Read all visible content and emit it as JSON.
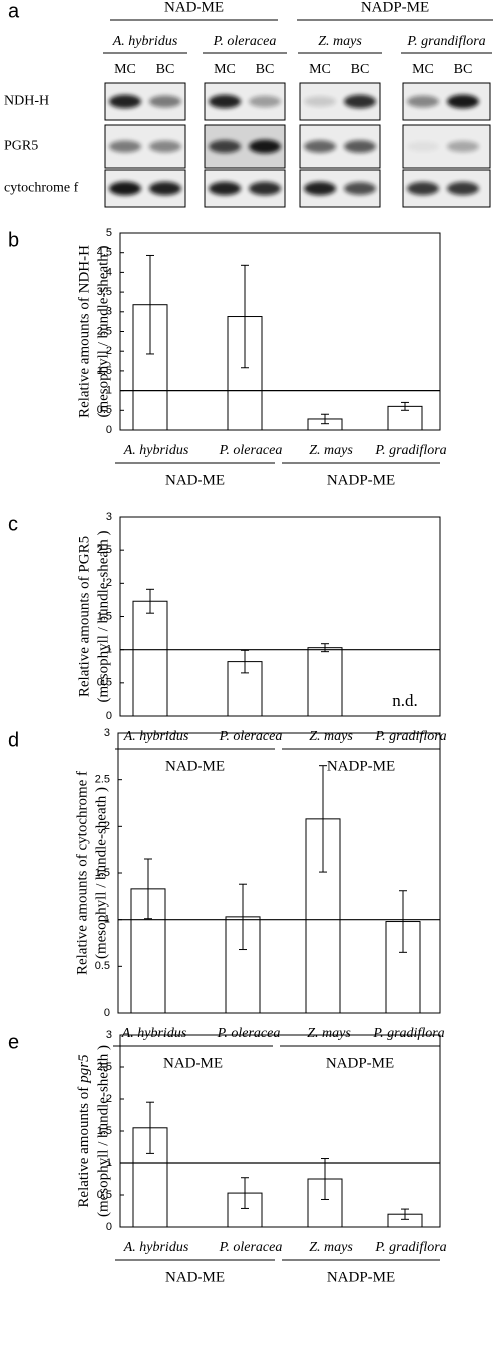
{
  "blot": {
    "label": "a",
    "groups": [
      {
        "name": "NAD-ME",
        "species": [
          "A. hybridus",
          "P. oleracea"
        ]
      },
      {
        "name": "NADP-ME",
        "species": [
          "Z. mays",
          "P. grandiflora"
        ]
      }
    ],
    "lanes": [
      "MC",
      "BC"
    ],
    "rows": [
      "NDH-H",
      "PGR5",
      "cytochrome f"
    ]
  },
  "chart_data": [
    {
      "type": "bar",
      "label": "b",
      "ylabel": "Relative amounts of NDH-H",
      "ylabel2": "(mesophyll / bundle-sheath )",
      "categories": [
        "A. hybridus",
        "P. oleracea",
        "Z. mays",
        "P. gradiflora"
      ],
      "groups": [
        "NAD-ME",
        "NADP-ME"
      ],
      "series": [
        {
          "color": "#ffffff",
          "values": [
            3.18,
            2.88,
            0.28,
            0.6
          ],
          "errors": [
            1.25,
            1.3,
            0.12,
            0.1
          ]
        }
      ],
      "ylim": [
        0,
        5
      ],
      "yticks": [
        0,
        0.5,
        1,
        1.5,
        2,
        2.5,
        3,
        3.5,
        4,
        4.5,
        5
      ],
      "hline": 1
    },
    {
      "type": "bar",
      "label": "c",
      "ylabel": "Relative amounts of PGR5",
      "ylabel2": "(mesophyll / bundle-sheath )",
      "categories": [
        "A. hybridus",
        "P. oleracea",
        "Z. mays",
        "P. gradiflora"
      ],
      "groups": [
        "NAD-ME",
        "NADP-ME"
      ],
      "series": [
        {
          "color": "#ffffff",
          "values": [
            1.73,
            0.82,
            1.03,
            null
          ],
          "errors": [
            0.18,
            0.17,
            0.06,
            null
          ],
          "value_labels": [
            null,
            null,
            null,
            "n.d."
          ]
        }
      ],
      "ylim": [
        0,
        3
      ],
      "yticks": [
        0,
        0.5,
        1,
        1.5,
        2,
        2.5,
        3
      ],
      "hline": 1
    },
    {
      "type": "bar",
      "label": "d",
      "ylabel": "Relative amounts of cytochrome f",
      "ylabel2": "(mesophyll / bundle-sheath )",
      "categories": [
        "A. hybridus",
        "P. oleracea",
        "Z. mays",
        "P. gradiflora"
      ],
      "groups": [
        "NAD-ME",
        "NADP-ME"
      ],
      "series": [
        {
          "color": "#ffffff",
          "values": [
            1.33,
            1.03,
            2.08,
            0.98
          ],
          "errors": [
            0.32,
            0.35,
            0.57,
            0.33
          ]
        }
      ],
      "ylim": [
        0,
        3
      ],
      "yticks": [
        0,
        0.5,
        1,
        1.5,
        2,
        2.5,
        3
      ],
      "hline": 1
    },
    {
      "type": "bar",
      "label": "e",
      "ylabel": [
        "Relative amounts of",
        "pgr5"
      ],
      "ylabel2": "(mesophyll / bundle-sheath )",
      "categories": [
        "A. hybridus",
        "P. oleracea",
        "Z. mays",
        "P. gradiflora"
      ],
      "groups": [
        "NAD-ME",
        "NADP-ME"
      ],
      "series": [
        {
          "color": "#ffffff",
          "values": [
            1.55,
            0.53,
            0.75,
            0.2
          ],
          "errors": [
            0.4,
            0.24,
            0.32,
            0.08
          ]
        }
      ],
      "ylim": [
        0,
        3
      ],
      "yticks": [
        0,
        0.5,
        1,
        1.5,
        2,
        2.5,
        3
      ],
      "hline": 1
    }
  ]
}
